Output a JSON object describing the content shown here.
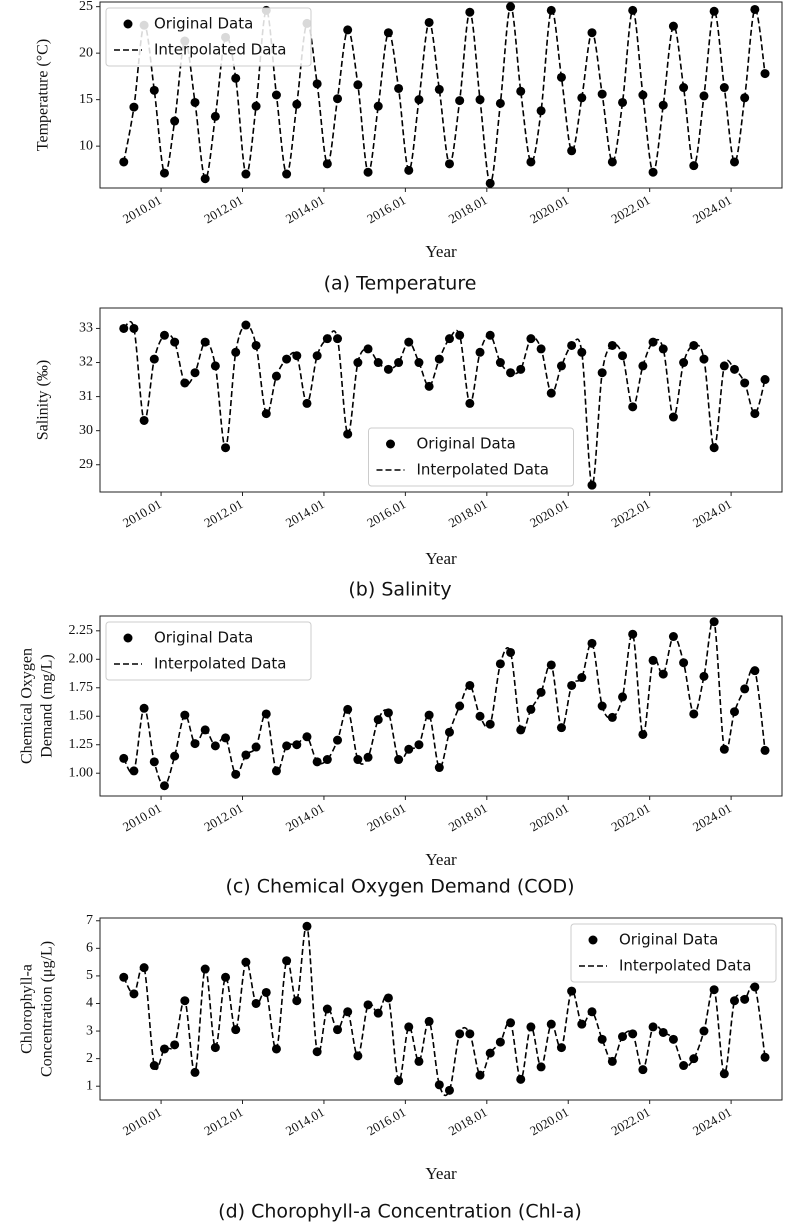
{
  "chart_data": [
    {
      "type": "line",
      "caption": "(a)  Temperature",
      "xlabel": "Year",
      "ylabel": [
        "Temperature (°C)"
      ],
      "legend": "upper left",
      "x": [
        "2009-02",
        "2009-05",
        "2009-08",
        "2009-11",
        "2010-02",
        "2010-05",
        "2010-08",
        "2010-11",
        "2011-02",
        "2011-05",
        "2011-08",
        "2011-11",
        "2012-02",
        "2012-05",
        "2012-08",
        "2012-11",
        "2013-02",
        "2013-05",
        "2013-08",
        "2013-11",
        "2014-02",
        "2014-05",
        "2014-08",
        "2014-11",
        "2015-02",
        "2015-05",
        "2015-08",
        "2015-11",
        "2016-02",
        "2016-05",
        "2016-08",
        "2016-11",
        "2017-02",
        "2017-05",
        "2017-08",
        "2017-11",
        "2018-02",
        "2018-05",
        "2018-08",
        "2018-11",
        "2019-02",
        "2019-05",
        "2019-08",
        "2019-11",
        "2020-02",
        "2020-05",
        "2020-08",
        "2020-11",
        "2021-02",
        "2021-05",
        "2021-08",
        "2021-11",
        "2022-02",
        "2022-05",
        "2022-08",
        "2022-11",
        "2023-02",
        "2023-05",
        "2023-08",
        "2023-11",
        "2024-02",
        "2024-05",
        "2024-08",
        "2024-11"
      ],
      "series": [
        {
          "name": "Original Data",
          "color": "#000000",
          "style": "markers",
          "values": [
            8.3,
            14.2,
            23,
            16,
            7.1,
            12.7,
            21.3,
            14.7,
            6.5,
            13.2,
            21.7,
            17.3,
            7,
            14.3,
            24.6,
            15.5,
            7,
            14.5,
            23.2,
            16.7,
            8.1,
            15.1,
            22.5,
            16.6,
            7.2,
            14.3,
            22.2,
            16.2,
            7.4,
            15,
            23.3,
            16.1,
            8.1,
            14.9,
            24.4,
            15,
            6,
            14.6,
            25,
            15.9,
            8.3,
            13.8,
            24.6,
            17.4,
            9.5,
            15.2,
            22.2,
            15.6,
            8.3,
            14.7,
            24.6,
            15.5,
            7.2,
            14.4,
            22.9,
            16.3,
            7.9,
            15.4,
            24.5,
            16.3,
            8.3,
            15.2,
            24.7,
            17.8
          ]
        },
        {
          "name": "Interpolated Data",
          "color": "#000000",
          "style": "dashed"
        }
      ],
      "xlim": [
        "2008-07",
        "2025-04"
      ],
      "ylim": [
        5.5,
        25.5
      ],
      "yticks": [
        10,
        15,
        20,
        25
      ],
      "xticks": [
        {
          "value": "2010-01",
          "label": "2010.01"
        },
        {
          "value": "2012-01",
          "label": "2012.01"
        },
        {
          "value": "2014-01",
          "label": "2014.01"
        },
        {
          "value": "2016-01",
          "label": "2016.01"
        },
        {
          "value": "2018-01",
          "label": "2018.01"
        },
        {
          "value": "2020-01",
          "label": "2020.01"
        },
        {
          "value": "2022-01",
          "label": "2022.01"
        },
        {
          "value": "2024-01",
          "label": "2024.01"
        }
      ]
    },
    {
      "type": "line",
      "caption": "(b)  Salinity",
      "xlabel": "Year",
      "ylabel": [
        "Salinity (‰)"
      ],
      "legend": "lower center",
      "x": [
        "2009-02",
        "2009-05",
        "2009-08",
        "2009-11",
        "2010-02",
        "2010-05",
        "2010-08",
        "2010-11",
        "2011-02",
        "2011-05",
        "2011-08",
        "2011-11",
        "2012-02",
        "2012-05",
        "2012-08",
        "2012-11",
        "2013-02",
        "2013-05",
        "2013-08",
        "2013-11",
        "2014-02",
        "2014-05",
        "2014-08",
        "2014-11",
        "2015-02",
        "2015-05",
        "2015-08",
        "2015-11",
        "2016-02",
        "2016-05",
        "2016-08",
        "2016-11",
        "2017-02",
        "2017-05",
        "2017-08",
        "2017-11",
        "2018-02",
        "2018-05",
        "2018-08",
        "2018-11",
        "2019-02",
        "2019-05",
        "2019-08",
        "2019-11",
        "2020-02",
        "2020-05",
        "2020-08",
        "2020-11",
        "2021-02",
        "2021-05",
        "2021-08",
        "2021-11",
        "2022-02",
        "2022-05",
        "2022-08",
        "2022-11",
        "2023-02",
        "2023-05",
        "2023-08",
        "2023-11",
        "2024-02",
        "2024-05",
        "2024-08",
        "2024-11"
      ],
      "series": [
        {
          "name": "Original Data",
          "color": "#000000",
          "style": "markers",
          "values": [
            33,
            33,
            30.3,
            32.1,
            32.8,
            32.6,
            31.4,
            31.7,
            32.6,
            31.9,
            29.5,
            32.3,
            33.1,
            32.5,
            30.5,
            31.6,
            32.1,
            32.2,
            30.8,
            32.2,
            32.7,
            32.7,
            29.9,
            32,
            32.4,
            32,
            31.8,
            32,
            32.6,
            32,
            31.3,
            32.1,
            32.7,
            32.8,
            30.8,
            32.3,
            32.8,
            32,
            31.7,
            31.8,
            32.7,
            32.4,
            31.1,
            31.9,
            32.5,
            32.3,
            28.4,
            31.7,
            32.5,
            32.2,
            30.7,
            31.9,
            32.6,
            32.4,
            30.4,
            32,
            32.5,
            32.1,
            29.5,
            31.9,
            31.8,
            31.4,
            30.5,
            31.5
          ]
        },
        {
          "name": "Interpolated Data",
          "color": "#000000",
          "style": "dashed"
        }
      ],
      "xlim": [
        "2008-07",
        "2025-04"
      ],
      "ylim": [
        28.2,
        33.6
      ],
      "yticks": [
        29,
        30,
        31,
        32,
        33
      ],
      "xticks": [
        {
          "value": "2010-01",
          "label": "2010.01"
        },
        {
          "value": "2012-01",
          "label": "2012.01"
        },
        {
          "value": "2014-01",
          "label": "2014.01"
        },
        {
          "value": "2016-01",
          "label": "2016.01"
        },
        {
          "value": "2018-01",
          "label": "2018.01"
        },
        {
          "value": "2020-01",
          "label": "2020.01"
        },
        {
          "value": "2022-01",
          "label": "2022.01"
        },
        {
          "value": "2024-01",
          "label": "2024.01"
        }
      ]
    },
    {
      "type": "line",
      "caption": "(c)  Chemical  Oxygen  Demand  (COD)",
      "xlabel": "Year",
      "ylabel": [
        "Chemical Oxygen",
        "Demand (mg/L)"
      ],
      "legend": "upper left",
      "x": [
        "2009-02",
        "2009-05",
        "2009-08",
        "2009-11",
        "2010-02",
        "2010-05",
        "2010-08",
        "2010-11",
        "2011-02",
        "2011-05",
        "2011-08",
        "2011-11",
        "2012-02",
        "2012-05",
        "2012-08",
        "2012-11",
        "2013-02",
        "2013-05",
        "2013-08",
        "2013-11",
        "2014-02",
        "2014-05",
        "2014-08",
        "2014-11",
        "2015-02",
        "2015-05",
        "2015-08",
        "2015-11",
        "2016-02",
        "2016-05",
        "2016-08",
        "2016-11",
        "2017-02",
        "2017-05",
        "2017-08",
        "2017-11",
        "2018-02",
        "2018-05",
        "2018-08",
        "2018-11",
        "2019-02",
        "2019-05",
        "2019-08",
        "2019-11",
        "2020-02",
        "2020-05",
        "2020-08",
        "2020-11",
        "2021-02",
        "2021-05",
        "2021-08",
        "2021-11",
        "2022-02",
        "2022-05",
        "2022-08",
        "2022-11",
        "2023-02",
        "2023-05",
        "2023-08",
        "2023-11",
        "2024-02",
        "2024-05",
        "2024-08",
        "2024-11"
      ],
      "series": [
        {
          "name": "Original Data",
          "color": "#000000",
          "style": "markers",
          "values": [
            1.13,
            1.02,
            1.57,
            1.1,
            0.89,
            1.15,
            1.51,
            1.26,
            1.38,
            1.24,
            1.31,
            0.99,
            1.16,
            1.23,
            1.52,
            1.02,
            1.24,
            1.25,
            1.32,
            1.1,
            1.12,
            1.29,
            1.56,
            1.12,
            1.14,
            1.47,
            1.53,
            1.12,
            1.21,
            1.25,
            1.51,
            1.05,
            1.36,
            1.59,
            1.77,
            1.5,
            1.43,
            1.96,
            2.06,
            1.38,
            1.56,
            1.71,
            1.95,
            1.4,
            1.77,
            1.84,
            2.14,
            1.59,
            1.49,
            1.67,
            2.22,
            1.34,
            1.99,
            1.87,
            2.2,
            1.97,
            1.52,
            1.85,
            2.33,
            1.21,
            1.54,
            1.74,
            1.9,
            1.2
          ]
        },
        {
          "name": "Interpolated Data",
          "color": "#000000",
          "style": "dashed"
        }
      ],
      "xlim": [
        "2008-07",
        "2025-04"
      ],
      "ylim": [
        0.8,
        2.38
      ],
      "yticks": [
        {
          "value": 1,
          "label": "1.00"
        },
        {
          "value": 1.25,
          "label": "1.25"
        },
        {
          "value": 1.5,
          "label": "1.50"
        },
        {
          "value": 1.75,
          "label": "1.75"
        },
        {
          "value": 2,
          "label": "2.00"
        },
        {
          "value": 2.25,
          "label": "2.25"
        }
      ],
      "xticks": [
        {
          "value": "2010-01",
          "label": "2010.01"
        },
        {
          "value": "2012-01",
          "label": "2012.01"
        },
        {
          "value": "2014-01",
          "label": "2014.01"
        },
        {
          "value": "2016-01",
          "label": "2016.01"
        },
        {
          "value": "2018-01",
          "label": "2018.01"
        },
        {
          "value": "2020-01",
          "label": "2020.01"
        },
        {
          "value": "2022-01",
          "label": "2022.01"
        },
        {
          "value": "2024-01",
          "label": "2024.01"
        }
      ]
    },
    {
      "type": "line",
      "caption": "(d)  Chorophyll-a  Concentration  (Chl-a)",
      "xlabel": "Year",
      "ylabel": [
        "Chlorophyll-a",
        "Concentration (μg/L)"
      ],
      "legend": "upper right",
      "x": [
        "2009-02",
        "2009-05",
        "2009-08",
        "2009-11",
        "2010-02",
        "2010-05",
        "2010-08",
        "2010-11",
        "2011-02",
        "2011-05",
        "2011-08",
        "2011-11",
        "2012-02",
        "2012-05",
        "2012-08",
        "2012-11",
        "2013-02",
        "2013-05",
        "2013-08",
        "2013-11",
        "2014-02",
        "2014-05",
        "2014-08",
        "2014-11",
        "2015-02",
        "2015-05",
        "2015-08",
        "2015-11",
        "2016-02",
        "2016-05",
        "2016-08",
        "2016-11",
        "2017-02",
        "2017-05",
        "2017-08",
        "2017-11",
        "2018-02",
        "2018-05",
        "2018-08",
        "2018-11",
        "2019-02",
        "2019-05",
        "2019-08",
        "2019-11",
        "2020-02",
        "2020-05",
        "2020-08",
        "2020-11",
        "2021-02",
        "2021-05",
        "2021-08",
        "2021-11",
        "2022-02",
        "2022-05",
        "2022-08",
        "2022-11",
        "2023-02",
        "2023-05",
        "2023-08",
        "2023-11",
        "2024-02",
        "2024-05",
        "2024-08",
        "2024-11"
      ],
      "series": [
        {
          "name": "Original Data",
          "color": "#000000",
          "style": "markers",
          "values": [
            4.95,
            4.35,
            5.3,
            1.75,
            2.35,
            2.5,
            4.1,
            1.5,
            5.25,
            2.4,
            4.95,
            3.05,
            5.5,
            4,
            4.4,
            2.35,
            5.55,
            4.1,
            6.8,
            2.25,
            3.8,
            3.05,
            3.7,
            2.1,
            3.95,
            3.65,
            4.2,
            1.2,
            3.15,
            1.9,
            3.35,
            1.05,
            0.85,
            2.9,
            2.9,
            1.4,
            2.2,
            2.6,
            3.3,
            1.25,
            3.15,
            1.7,
            3.25,
            2.4,
            4.45,
            3.25,
            3.7,
            2.7,
            1.9,
            2.8,
            2.9,
            1.6,
            3.15,
            2.95,
            2.7,
            1.75,
            2,
            3,
            4.5,
            1.45,
            4.1,
            4.15,
            4.6,
            2.05
          ]
        },
        {
          "name": "Interpolated Data",
          "color": "#000000",
          "style": "dashed"
        }
      ],
      "xlim": [
        "2008-07",
        "2025-04"
      ],
      "ylim": [
        0.5,
        7.1
      ],
      "yticks": [
        1,
        2,
        3,
        4,
        5,
        6,
        7
      ],
      "xticks": [
        {
          "value": "2010-01",
          "label": "2010.01"
        },
        {
          "value": "2012-01",
          "label": "2012.01"
        },
        {
          "value": "2014-01",
          "label": "2014.01"
        },
        {
          "value": "2016-01",
          "label": "2016.01"
        },
        {
          "value": "2018-01",
          "label": "2018.01"
        },
        {
          "value": "2020-01",
          "label": "2020.01"
        },
        {
          "value": "2022-01",
          "label": "2022.01"
        },
        {
          "value": "2024-01",
          "label": "2024.01"
        }
      ]
    }
  ]
}
